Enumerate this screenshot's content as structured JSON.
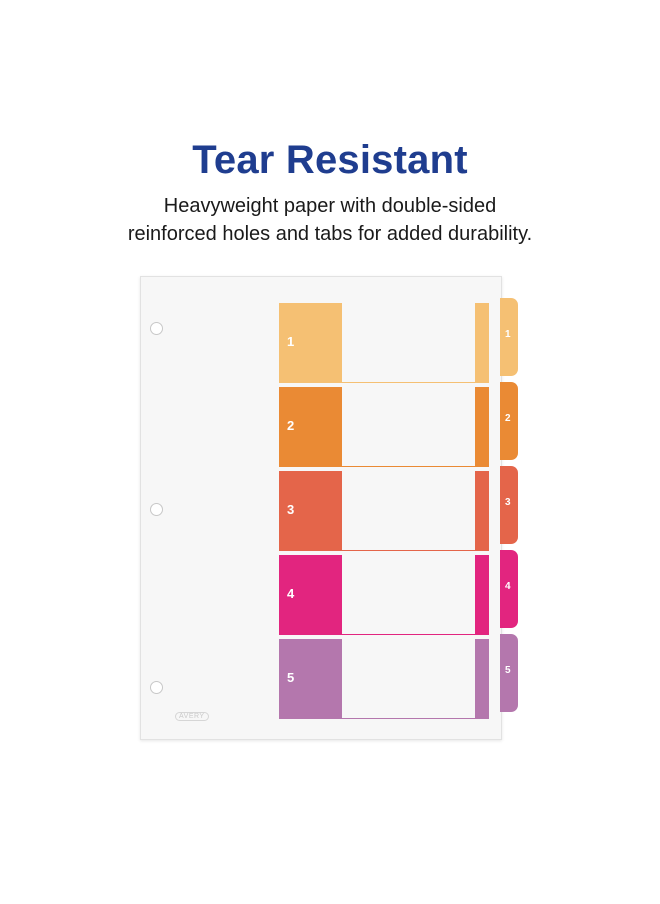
{
  "heading": {
    "title": "Tear Resistant",
    "subtitle_line1": "Heavyweight paper with double-sided",
    "subtitle_line2": "reinforced holes and tabs for added durability."
  },
  "divider": {
    "logo_text": "AVERY",
    "tabs": [
      {
        "label": "1",
        "color": "#f5c073"
      },
      {
        "label": "2",
        "color": "#ea8a34"
      },
      {
        "label": "3",
        "color": "#e4654a"
      },
      {
        "label": "4",
        "color": "#e2257f"
      },
      {
        "label": "5",
        "color": "#b477ad"
      }
    ]
  }
}
